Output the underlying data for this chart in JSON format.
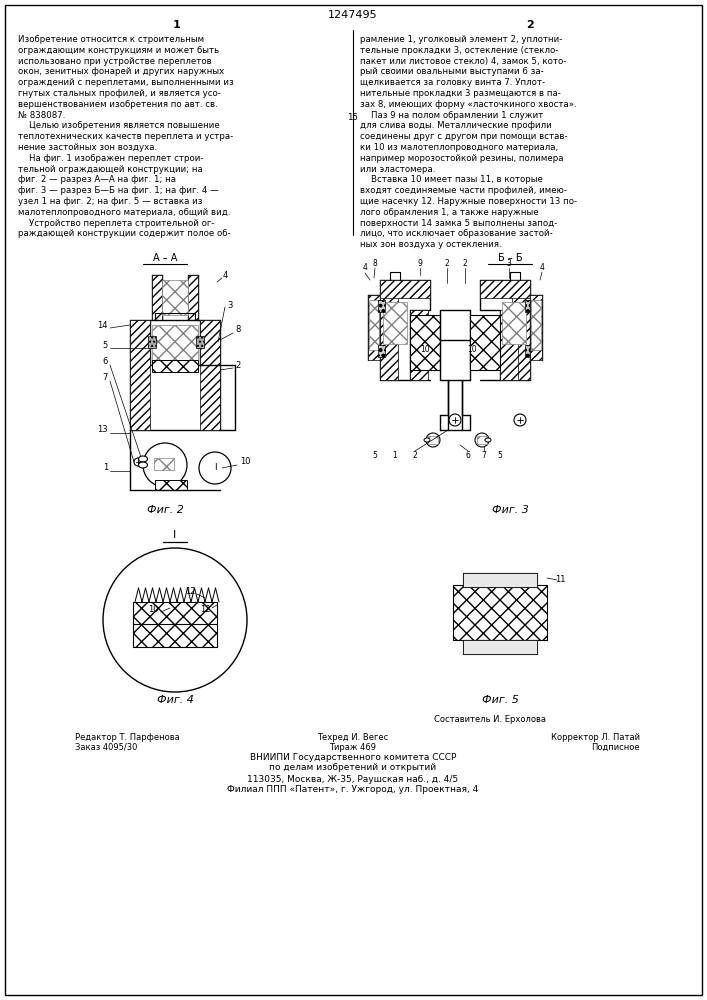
{
  "patent_number": "1247495",
  "col1_header": "1",
  "col2_header": "2",
  "bg_color": "#ffffff",
  "text_color": "#000000",
  "col1_lines": [
    "Изобретение относится к строительным",
    "ограждающим конструкциям и может быть",
    "использовано при устройстве переплетов",
    "окон, зенитных фонарей и других наружных",
    "ограждений с переплетами, выполненными из",
    "гнутых стальных профилей, и является усо-",
    "вершенствованием изобретения по авт. св.",
    "№ 838087.",
    "    Целью изобретения является повышение",
    "теплотехнических качеств переплета и устра-",
    "нение застойных зон воздуха.",
    "    На фиг. 1 изображен переплет строи-",
    "тельной ограждающей конструкции; на",
    "фиг. 2 — разрез А—А на фиг. 1; на",
    "фиг. 3 — разрез Б—Б на фиг. 1; на фиг. 4 —",
    "узел 1 на фиг. 2; на фиг. 5 — вставка из",
    "малотеплопроводного материала, общий вид.",
    "    Устройство переплета строительной ог-",
    "раждающей конструкции содержит полое об-"
  ],
  "col2_lines": [
    "рамление 1, уголковый элемент 2, уплотни-",
    "тельные прокладки 3, остекление (стекло-",
    "пакет или листовое стекло) 4, замок 5, кото-",
    "рый своими овальными выступами 6 за-",
    "щелкивается за головку винта 7. Уплот-",
    "нительные прокладки 3 размещаются в па-",
    "зах 8, имеющих форму «ласточкиного хвоста».",
    "    Паз 9 на полом обрамлении 1 служит",
    "для слива воды. Металлические профили",
    "соединены друг с другом при помощи встав-",
    "ки 10 из малотеплопроводного материала,",
    "например морозостойкой резины, полимера",
    "или эластомера.",
    "    Вставка 10 имеет пазы 11, в которые",
    "входят соединяемые части профилей, имею-",
    "щие насечку 12. Наружные поверхности 13 по-",
    "лого обрамления 1, а также наружные",
    "поверхности 14 замка 5 выполнены запод-",
    "лицо, что исключает образование застой-",
    "ных зон воздуха у остекления."
  ],
  "line15_row": 7,
  "fig2_caption": "Фиг. 2",
  "fig3_caption": "Фиг. 3",
  "fig4_caption": "Фиг. 4",
  "fig5_caption": "Фиг. 5",
  "fig2_label": "А – А",
  "fig3_label": "Б – Б",
  "fig4_label": "I",
  "bottom_lines": [
    [
      "center_right",
      "Составитель И. Ерхолова"
    ],
    [
      "left",
      "Редактор Т. Парфенова"
    ],
    [
      "center",
      "Техред И. Вегес"
    ],
    [
      "right",
      "Корректор Л. Патай"
    ],
    [
      "left",
      "Заказ 4095/30"
    ],
    [
      "center",
      "Тираж 469"
    ],
    [
      "right",
      "Подписное"
    ],
    [
      "center",
      "ВНИИПИ Государственного комитета СССР"
    ],
    [
      "center",
      "по делам изобретений и открытий"
    ],
    [
      "center",
      "113035, Москва, Ж-35, Раушская наб., д. 4/5"
    ],
    [
      "center",
      "Филиал ППП «Патент», г. Ужгород, ул. Проектная, 4"
    ]
  ]
}
